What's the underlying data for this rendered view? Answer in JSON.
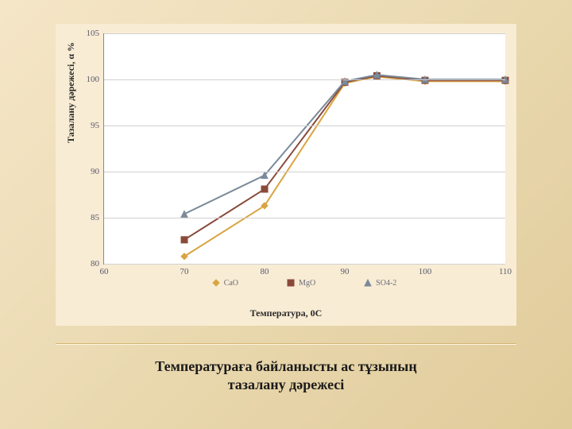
{
  "chart": {
    "type": "line",
    "panel_bg": "#f8ecd4",
    "plot_bg": "#ffffff",
    "grid_color": "#d0d0d0",
    "axis_color": "#888888",
    "tick_color": "#5a5a6a",
    "tick_fontsize": 11,
    "label_fontsize": 12,
    "xlim": [
      60,
      110
    ],
    "ylim": [
      80,
      105
    ],
    "xticks": [
      60,
      70,
      80,
      90,
      100,
      110
    ],
    "yticks": [
      80,
      85,
      90,
      95,
      100,
      105
    ],
    "xlabel": "Температура, 0С",
    "ylabel": "Тазалану дәрежесі, α %",
    "series": [
      {
        "name": "CaO",
        "color": "#d9a441",
        "marker": "diamond",
        "x": [
          70,
          80,
          90,
          94,
          100,
          110
        ],
        "y": [
          80.8,
          86.3,
          99.6,
          100.3,
          99.8,
          99.8
        ]
      },
      {
        "name": "MgO",
        "color": "#8a4a3a",
        "marker": "square",
        "x": [
          70,
          80,
          90,
          94,
          100,
          110
        ],
        "y": [
          82.6,
          88.1,
          99.7,
          100.4,
          99.9,
          99.9
        ]
      },
      {
        "name": "SO4-2",
        "color": "#7a8a9a",
        "marker": "triangle",
        "x": [
          70,
          80,
          90,
          94,
          100,
          110
        ],
        "y": [
          85.4,
          89.6,
          99.8,
          100.5,
          100.0,
          100.0
        ]
      }
    ]
  },
  "caption_line1": "Температураға байланысты ас тұзының",
  "caption_line2": "тазалану дәрежесі",
  "slide_bg_from": "#f5e6c8",
  "slide_bg_to": "#e0cb9a"
}
